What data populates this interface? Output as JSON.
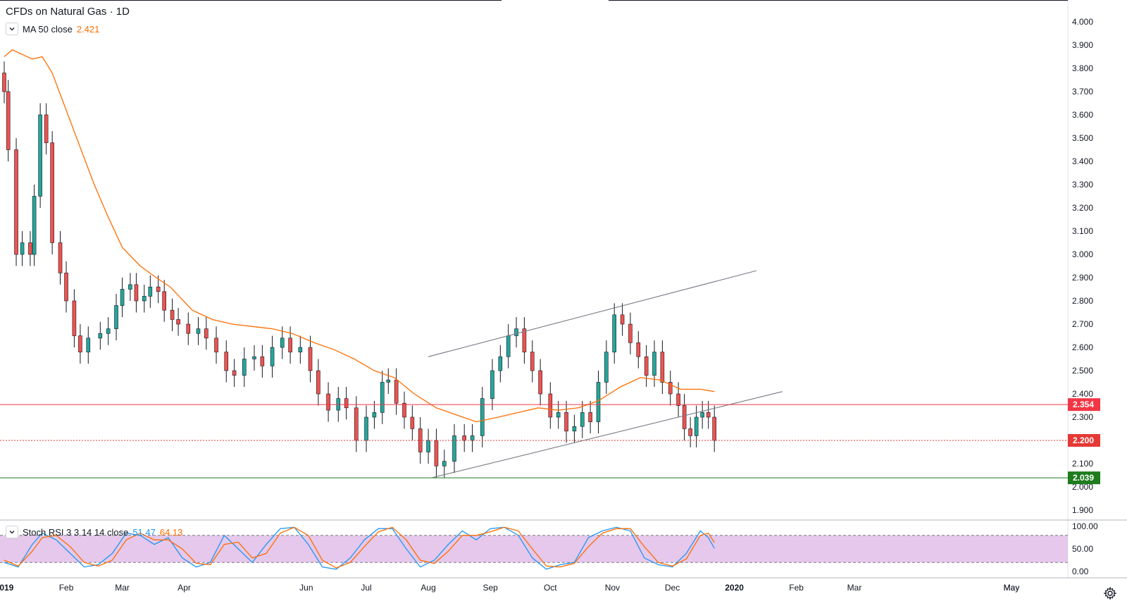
{
  "header": {
    "symbol_title": "CFDs on Natural Gas",
    "separator": "·",
    "interval": "1D"
  },
  "indicators": {
    "ma": {
      "label": "MA 50 close",
      "value": "2.421",
      "color": "#ff6d00"
    },
    "stoch_rsi": {
      "label": "Stoch RSI 3 3 14 14 close",
      "k_value": "51.47",
      "d_value": "64.13",
      "k_color": "#2196f3",
      "d_color": "#ff6d00"
    }
  },
  "colors": {
    "up": "#26a69a",
    "down": "#ef5350",
    "wick": "#131722",
    "resistance_line": "#f23645",
    "support_line": "#1e7b1e",
    "current_price_line": "#e53935",
    "channel_line": "#787b86",
    "rsi_band_fill": "#e1bee7"
  },
  "icons": {
    "collapse": "chevron-down-icon",
    "settings": "gear-icon"
  },
  "chart_data": [
    {
      "type": "candlestick",
      "title": "CFDs on Natural Gas",
      "interval": "1D",
      "ylim": [
        1.85,
        4.05
      ],
      "y_ticks": [
        "4.000",
        "3.900",
        "3.800",
        "3.700",
        "3.600",
        "3.500",
        "3.400",
        "3.300",
        "3.200",
        "3.100",
        "3.000",
        "2.900",
        "2.800",
        "2.700",
        "2.600",
        "2.500",
        "2.400",
        "2.300",
        "2.200",
        "2.100",
        "2.000",
        "1.900"
      ],
      "x_ticks": [
        "2019",
        "Feb",
        "Mar",
        "Apr",
        "May",
        "Jun",
        "Jul",
        "Aug",
        "Sep",
        "Oct",
        "Nov",
        "Dec",
        "2020",
        "Feb",
        "Mar",
        "May"
      ],
      "price_markers": [
        {
          "label": "2.354",
          "value": 2.354,
          "role": "resistance-line"
        },
        {
          "label": "2.200",
          "value": 2.2,
          "role": "last-price"
        },
        {
          "label": "2.039",
          "value": 2.039,
          "role": "support-line"
        }
      ],
      "channel": {
        "upper": {
          "start": [
            "2019-08-01",
            2.56
          ],
          "end": [
            "2020-01-12",
            2.93
          ]
        },
        "lower": {
          "start": [
            "2019-08-03",
            2.04
          ],
          "end": [
            "2020-01-25",
            2.41
          ]
        }
      },
      "ma50": [
        [
          "2019-01-01",
          3.85
        ],
        [
          "2019-01-05",
          3.88
        ],
        [
          "2019-01-15",
          3.84
        ],
        [
          "2019-01-20",
          3.85
        ],
        [
          "2019-01-25",
          3.78
        ],
        [
          "2019-02-01",
          3.62
        ],
        [
          "2019-02-08",
          3.46
        ],
        [
          "2019-02-15",
          3.3
        ],
        [
          "2019-02-22",
          3.16
        ],
        [
          "2019-03-01",
          3.03
        ],
        [
          "2019-03-10",
          2.95
        ],
        [
          "2019-03-18",
          2.9
        ],
        [
          "2019-03-25",
          2.86
        ],
        [
          "2019-04-05",
          2.76
        ],
        [
          "2019-04-15",
          2.72
        ],
        [
          "2019-04-25",
          2.7
        ],
        [
          "2019-05-05",
          2.69
        ],
        [
          "2019-05-15",
          2.68
        ],
        [
          "2019-05-25",
          2.66
        ],
        [
          "2019-06-05",
          2.62
        ],
        [
          "2019-06-15",
          2.59
        ],
        [
          "2019-06-25",
          2.55
        ],
        [
          "2019-07-05",
          2.5
        ],
        [
          "2019-07-15",
          2.47
        ],
        [
          "2019-07-25",
          2.4
        ],
        [
          "2019-08-05",
          2.34
        ],
        [
          "2019-08-15",
          2.31
        ],
        [
          "2019-08-25",
          2.28
        ],
        [
          "2019-09-05",
          2.3
        ],
        [
          "2019-09-15",
          2.32
        ],
        [
          "2019-09-25",
          2.34
        ],
        [
          "2019-10-05",
          2.33
        ],
        [
          "2019-10-15",
          2.34
        ],
        [
          "2019-10-25",
          2.37
        ],
        [
          "2019-11-05",
          2.43
        ],
        [
          "2019-11-15",
          2.47
        ],
        [
          "2019-11-25",
          2.46
        ],
        [
          "2019-12-05",
          2.42
        ],
        [
          "2019-12-15",
          2.42
        ],
        [
          "2019-12-22",
          2.41
        ]
      ],
      "close": [
        [
          "2019-01-01",
          3.7
        ],
        [
          "2019-01-03",
          3.45
        ],
        [
          "2019-01-07",
          3.0
        ],
        [
          "2019-01-10",
          3.05
        ],
        [
          "2019-01-14",
          3.0
        ],
        [
          "2019-01-16",
          3.25
        ],
        [
          "2019-01-19",
          3.6
        ],
        [
          "2019-01-22",
          3.48
        ],
        [
          "2019-01-25",
          3.05
        ],
        [
          "2019-01-29",
          2.92
        ],
        [
          "2019-02-01",
          2.8
        ],
        [
          "2019-02-05",
          2.65
        ],
        [
          "2019-02-08",
          2.58
        ],
        [
          "2019-02-12",
          2.64
        ],
        [
          "2019-02-18",
          2.66
        ],
        [
          "2019-02-22",
          2.68
        ],
        [
          "2019-02-26",
          2.78
        ],
        [
          "2019-03-01",
          2.85
        ],
        [
          "2019-03-05",
          2.87
        ],
        [
          "2019-03-08",
          2.8
        ],
        [
          "2019-03-12",
          2.82
        ],
        [
          "2019-03-15",
          2.86
        ],
        [
          "2019-03-19",
          2.84
        ],
        [
          "2019-03-22",
          2.76
        ],
        [
          "2019-03-26",
          2.72
        ],
        [
          "2019-03-29",
          2.7
        ],
        [
          "2019-04-03",
          2.66
        ],
        [
          "2019-04-08",
          2.68
        ],
        [
          "2019-04-12",
          2.64
        ],
        [
          "2019-04-17",
          2.58
        ],
        [
          "2019-04-22",
          2.5
        ],
        [
          "2019-04-26",
          2.48
        ],
        [
          "2019-05-01",
          2.55
        ],
        [
          "2019-05-06",
          2.56
        ],
        [
          "2019-05-10",
          2.52
        ],
        [
          "2019-05-15",
          2.6
        ],
        [
          "2019-05-20",
          2.64
        ],
        [
          "2019-05-24",
          2.58
        ],
        [
          "2019-05-29",
          2.6
        ],
        [
          "2019-06-03",
          2.5
        ],
        [
          "2019-06-07",
          2.4
        ],
        [
          "2019-06-12",
          2.33
        ],
        [
          "2019-06-17",
          2.38
        ],
        [
          "2019-06-21",
          2.34
        ],
        [
          "2019-06-26",
          2.2
        ],
        [
          "2019-07-01",
          2.3
        ],
        [
          "2019-07-05",
          2.32
        ],
        [
          "2019-07-09",
          2.45
        ],
        [
          "2019-07-12",
          2.46
        ],
        [
          "2019-07-16",
          2.36
        ],
        [
          "2019-07-20",
          2.3
        ],
        [
          "2019-07-24",
          2.25
        ],
        [
          "2019-07-28",
          2.15
        ],
        [
          "2019-08-01",
          2.2
        ],
        [
          "2019-08-05",
          2.09
        ],
        [
          "2019-08-09",
          2.11
        ],
        [
          "2019-08-14",
          2.22
        ],
        [
          "2019-08-19",
          2.2
        ],
        [
          "2019-08-23",
          2.22
        ],
        [
          "2019-08-28",
          2.38
        ],
        [
          "2019-09-02",
          2.5
        ],
        [
          "2019-09-06",
          2.56
        ],
        [
          "2019-09-10",
          2.65
        ],
        [
          "2019-09-14",
          2.68
        ],
        [
          "2019-09-18",
          2.58
        ],
        [
          "2019-09-22",
          2.5
        ],
        [
          "2019-09-26",
          2.4
        ],
        [
          "2019-10-01",
          2.3
        ],
        [
          "2019-10-05",
          2.32
        ],
        [
          "2019-10-09",
          2.24
        ],
        [
          "2019-10-13",
          2.26
        ],
        [
          "2019-10-17",
          2.32
        ],
        [
          "2019-10-21",
          2.28
        ],
        [
          "2019-10-25",
          2.45
        ],
        [
          "2019-10-29",
          2.58
        ],
        [
          "2019-11-02",
          2.74
        ],
        [
          "2019-11-06",
          2.7
        ],
        [
          "2019-11-10",
          2.62
        ],
        [
          "2019-11-14",
          2.56
        ],
        [
          "2019-11-18",
          2.48
        ],
        [
          "2019-11-22",
          2.58
        ],
        [
          "2019-11-26",
          2.45
        ],
        [
          "2019-11-30",
          2.4
        ],
        [
          "2019-12-04",
          2.35
        ],
        [
          "2019-12-07",
          2.25
        ],
        [
          "2019-12-10",
          2.22
        ],
        [
          "2019-12-13",
          2.3
        ],
        [
          "2019-12-16",
          2.32
        ],
        [
          "2019-12-19",
          2.3
        ],
        [
          "2019-12-22",
          2.2
        ]
      ]
    },
    {
      "type": "line",
      "title": "Stoch RSI 3 3 14 14 close",
      "ylim": [
        0,
        100
      ],
      "y_ticks": [
        "100.00",
        "50.00",
        "0.00"
      ],
      "bands": [
        20,
        80
      ],
      "series": [
        {
          "name": "K",
          "values": [
            [
              "2019-01-01",
              20
            ],
            [
              "2019-01-08",
              10
            ],
            [
              "2019-01-15",
              60
            ],
            [
              "2019-01-20",
              85
            ],
            [
              "2019-01-27",
              70
            ],
            [
              "2019-02-03",
              40
            ],
            [
              "2019-02-10",
              10
            ],
            [
              "2019-02-17",
              15
            ],
            [
              "2019-02-24",
              40
            ],
            [
              "2019-03-03",
              85
            ],
            [
              "2019-03-10",
              80
            ],
            [
              "2019-03-17",
              60
            ],
            [
              "2019-03-24",
              75
            ],
            [
              "2019-03-31",
              30
            ],
            [
              "2019-04-07",
              10
            ],
            [
              "2019-04-14",
              20
            ],
            [
              "2019-04-21",
              80
            ],
            [
              "2019-04-28",
              50
            ],
            [
              "2019-05-05",
              20
            ],
            [
              "2019-05-12",
              60
            ],
            [
              "2019-05-19",
              95
            ],
            [
              "2019-05-26",
              98
            ],
            [
              "2019-06-02",
              60
            ],
            [
              "2019-06-09",
              10
            ],
            [
              "2019-06-16",
              5
            ],
            [
              "2019-06-23",
              30
            ],
            [
              "2019-06-30",
              70
            ],
            [
              "2019-07-07",
              95
            ],
            [
              "2019-07-14",
              95
            ],
            [
              "2019-07-21",
              50
            ],
            [
              "2019-07-28",
              10
            ],
            [
              "2019-08-04",
              25
            ],
            [
              "2019-08-11",
              60
            ],
            [
              "2019-08-18",
              90
            ],
            [
              "2019-08-25",
              70
            ],
            [
              "2019-09-01",
              95
            ],
            [
              "2019-09-08",
              98
            ],
            [
              "2019-09-15",
              80
            ],
            [
              "2019-09-22",
              30
            ],
            [
              "2019-09-29",
              5
            ],
            [
              "2019-10-06",
              15
            ],
            [
              "2019-10-13",
              20
            ],
            [
              "2019-10-20",
              75
            ],
            [
              "2019-10-27",
              90
            ],
            [
              "2019-11-03",
              98
            ],
            [
              "2019-11-10",
              90
            ],
            [
              "2019-11-17",
              30
            ],
            [
              "2019-11-24",
              15
            ],
            [
              "2019-12-01",
              10
            ],
            [
              "2019-12-08",
              40
            ],
            [
              "2019-12-15",
              90
            ],
            [
              "2019-12-19",
              75
            ],
            [
              "2019-12-22",
              51.47
            ]
          ]
        },
        {
          "name": "D",
          "values": [
            [
              "2019-01-01",
              25
            ],
            [
              "2019-01-08",
              12
            ],
            [
              "2019-01-15",
              45
            ],
            [
              "2019-01-20",
              75
            ],
            [
              "2019-01-27",
              80
            ],
            [
              "2019-02-03",
              55
            ],
            [
              "2019-02-10",
              20
            ],
            [
              "2019-02-17",
              12
            ],
            [
              "2019-02-24",
              25
            ],
            [
              "2019-03-03",
              70
            ],
            [
              "2019-03-10",
              85
            ],
            [
              "2019-03-17",
              70
            ],
            [
              "2019-03-24",
              70
            ],
            [
              "2019-03-31",
              50
            ],
            [
              "2019-04-07",
              18
            ],
            [
              "2019-04-14",
              15
            ],
            [
              "2019-04-21",
              60
            ],
            [
              "2019-04-28",
              65
            ],
            [
              "2019-05-05",
              30
            ],
            [
              "2019-05-12",
              40
            ],
            [
              "2019-05-19",
              85
            ],
            [
              "2019-05-26",
              98
            ],
            [
              "2019-06-02",
              80
            ],
            [
              "2019-06-09",
              25
            ],
            [
              "2019-06-16",
              8
            ],
            [
              "2019-06-23",
              20
            ],
            [
              "2019-06-30",
              55
            ],
            [
              "2019-07-07",
              88
            ],
            [
              "2019-07-14",
              98
            ],
            [
              "2019-07-21",
              70
            ],
            [
              "2019-07-28",
              25
            ],
            [
              "2019-08-04",
              18
            ],
            [
              "2019-08-11",
              45
            ],
            [
              "2019-08-18",
              80
            ],
            [
              "2019-08-25",
              80
            ],
            [
              "2019-09-01",
              88
            ],
            [
              "2019-09-08",
              98
            ],
            [
              "2019-09-15",
              90
            ],
            [
              "2019-09-22",
              50
            ],
            [
              "2019-09-29",
              12
            ],
            [
              "2019-10-06",
              10
            ],
            [
              "2019-10-13",
              18
            ],
            [
              "2019-10-20",
              55
            ],
            [
              "2019-10-27",
              85
            ],
            [
              "2019-11-03",
              95
            ],
            [
              "2019-11-10",
              95
            ],
            [
              "2019-11-17",
              55
            ],
            [
              "2019-11-24",
              20
            ],
            [
              "2019-12-01",
              12
            ],
            [
              "2019-12-08",
              28
            ],
            [
              "2019-12-15",
              80
            ],
            [
              "2019-12-19",
              85
            ],
            [
              "2019-12-22",
              64.13
            ]
          ]
        }
      ]
    }
  ]
}
